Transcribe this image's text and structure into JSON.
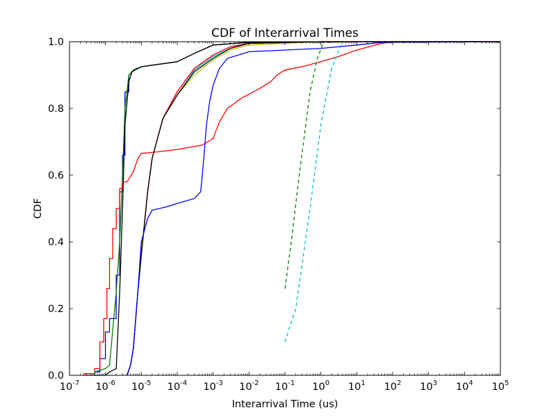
{
  "chart_data": {
    "type": "line",
    "title": "CDF of Interarrival Times",
    "xlabel": "Interarrival Time (us)",
    "ylabel": "CDF",
    "xscale": "log",
    "xlim": [
      1e-07,
      100000
    ],
    "ylim": [
      0,
      1
    ],
    "x_ticks": [
      {
        "base": "10",
        "exp": "-7"
      },
      {
        "base": "10",
        "exp": "-6"
      },
      {
        "base": "10",
        "exp": "-5"
      },
      {
        "base": "10",
        "exp": "-4"
      },
      {
        "base": "10",
        "exp": "-3"
      },
      {
        "base": "10",
        "exp": "-2"
      },
      {
        "base": "10",
        "exp": "-1"
      },
      {
        "base": "10",
        "exp": "0"
      },
      {
        "base": "10",
        "exp": "1"
      },
      {
        "base": "10",
        "exp": "2"
      },
      {
        "base": "10",
        "exp": "3"
      },
      {
        "base": "10",
        "exp": "4"
      },
      {
        "base": "10",
        "exp": "5"
      }
    ],
    "y_ticks": [
      "0.0",
      "0.2",
      "0.4",
      "0.6",
      "0.8",
      "1.0"
    ],
    "grid": false,
    "legend": "none",
    "series": [
      {
        "color": "#0000ff",
        "style": "solid",
        "points": [
          [
            2.5e-07,
            0
          ],
          [
            5e-07,
            0
          ],
          [
            5e-07,
            0.01
          ],
          [
            7e-07,
            0.01
          ],
          [
            7e-07,
            0.05
          ],
          [
            1e-06,
            0.05
          ],
          [
            1e-06,
            0.13
          ],
          [
            1.3e-06,
            0.13
          ],
          [
            1.3e-06,
            0.17
          ],
          [
            2e-06,
            0.17
          ],
          [
            2e-06,
            0.3
          ],
          [
            2.5e-06,
            0.3
          ],
          [
            2.5e-06,
            0.55
          ],
          [
            3e-06,
            0.55
          ],
          [
            3e-06,
            0.66
          ],
          [
            3.5e-06,
            0.66
          ],
          [
            3.5e-06,
            0.85
          ],
          [
            4.5e-06,
            0.85
          ],
          [
            4.5e-06,
            0.9
          ],
          [
            6e-06,
            0.915
          ],
          [
            1e-05,
            0.925
          ],
          [
            0.0001,
            0.94
          ],
          [
            0.0003,
            0.965
          ],
          [
            0.001,
            0.99
          ],
          [
            0.01,
            0.998
          ],
          [
            1,
            0.999
          ],
          [
            100,
            1
          ],
          [
            100000.0,
            1
          ]
        ]
      },
      {
        "color": "#007f00",
        "style": "solid",
        "points": [
          [
            5e-07,
            0
          ],
          [
            5e-07,
            0.01
          ],
          [
            1e-06,
            0.02
          ],
          [
            1.3e-06,
            0.03
          ],
          [
            2e-06,
            0.25
          ],
          [
            2.5e-06,
            0.4
          ],
          [
            3e-06,
            0.6
          ],
          [
            3.5e-06,
            0.8
          ],
          [
            4.5e-06,
            0.9
          ],
          [
            6e-06,
            0.915
          ],
          [
            1e-05,
            0.925
          ],
          [
            0.0001,
            0.94
          ],
          [
            0.0003,
            0.965
          ],
          [
            0.001,
            0.99
          ],
          [
            0.01,
            0.998
          ],
          [
            1,
            0.999
          ],
          [
            100,
            1
          ],
          [
            100000.0,
            1
          ]
        ]
      },
      {
        "color": "#000000",
        "style": "solid",
        "points": [
          [
            5e-07,
            0
          ],
          [
            1e-06,
            0
          ],
          [
            1.3e-06,
            0.01
          ],
          [
            2e-06,
            0.02
          ],
          [
            2.5e-06,
            0.25
          ],
          [
            3e-06,
            0.5
          ],
          [
            3.5e-06,
            0.75
          ],
          [
            4.5e-06,
            0.88
          ],
          [
            5.5e-06,
            0.91
          ],
          [
            1e-05,
            0.925
          ],
          [
            0.0001,
            0.94
          ],
          [
            0.0003,
            0.965
          ],
          [
            0.001,
            0.99
          ],
          [
            0.01,
            0.998
          ],
          [
            100,
            1
          ],
          [
            100000.0,
            1
          ]
        ]
      },
      {
        "color": "#ff0000",
        "style": "solid",
        "points": [
          [
            2.5e-07,
            0
          ],
          [
            2.5e-07,
            0.005
          ],
          [
            5e-07,
            0.005
          ],
          [
            5e-07,
            0.02
          ],
          [
            7e-07,
            0.02
          ],
          [
            7e-07,
            0.1
          ],
          [
            9e-07,
            0.1
          ],
          [
            9e-07,
            0.17
          ],
          [
            1.1e-06,
            0.17
          ],
          [
            1.1e-06,
            0.26
          ],
          [
            1.3e-06,
            0.26
          ],
          [
            1.3e-06,
            0.35
          ],
          [
            1.6e-06,
            0.35
          ],
          [
            1.6e-06,
            0.44
          ],
          [
            2e-06,
            0.44
          ],
          [
            2e-06,
            0.5
          ],
          [
            2.5e-06,
            0.5
          ],
          [
            2.5e-06,
            0.56
          ],
          [
            3e-06,
            0.56
          ],
          [
            3e-06,
            0.58
          ],
          [
            4e-06,
            0.58
          ],
          [
            6e-06,
            0.61
          ],
          [
            8e-06,
            0.65
          ],
          [
            1e-05,
            0.665
          ],
          [
            3e-05,
            0.67
          ],
          [
            0.0001,
            0.677
          ],
          [
            0.0005,
            0.69
          ],
          [
            0.001,
            0.71
          ],
          [
            0.0015,
            0.76
          ],
          [
            0.0025,
            0.8
          ],
          [
            0.006,
            0.83
          ],
          [
            0.02,
            0.86
          ],
          [
            0.04,
            0.88
          ],
          [
            0.06,
            0.9
          ],
          [
            0.1,
            0.915
          ],
          [
            0.3,
            0.925
          ],
          [
            1,
            0.94
          ],
          [
            3,
            0.955
          ],
          [
            10,
            0.975
          ],
          [
            50,
            0.995
          ],
          [
            100,
            1
          ],
          [
            100000.0,
            1
          ]
        ]
      },
      {
        "color": "#ff00ff",
        "style": "solid",
        "points": [
          [
            4e-06,
            0
          ],
          [
            5e-06,
            0.03
          ],
          [
            6e-06,
            0.08
          ],
          [
            8e-06,
            0.25
          ],
          [
            1e-05,
            0.36
          ],
          [
            1.5e-05,
            0.55
          ],
          [
            2e-05,
            0.65
          ],
          [
            4e-05,
            0.77
          ],
          [
            0.0001,
            0.85
          ],
          [
            0.0003,
            0.92
          ],
          [
            0.001,
            0.96
          ],
          [
            0.003,
            0.985
          ],
          [
            0.01,
            0.995
          ],
          [
            1,
            1
          ],
          [
            100000.0,
            1
          ]
        ]
      },
      {
        "color": "#00bfbf",
        "style": "solid",
        "points": [
          [
            4e-06,
            0
          ],
          [
            5e-06,
            0.03
          ],
          [
            6e-06,
            0.08
          ],
          [
            8e-06,
            0.25
          ],
          [
            1e-05,
            0.36
          ],
          [
            1.5e-05,
            0.55
          ],
          [
            2e-05,
            0.65
          ],
          [
            4e-05,
            0.77
          ],
          [
            0.0001,
            0.84
          ],
          [
            0.0003,
            0.915
          ],
          [
            0.001,
            0.955
          ],
          [
            0.003,
            0.98
          ],
          [
            0.01,
            0.995
          ],
          [
            1,
            1
          ],
          [
            100000.0,
            1
          ]
        ]
      },
      {
        "color": "#bfbf00",
        "style": "solid",
        "points": [
          [
            4e-06,
            0
          ],
          [
            5e-06,
            0.03
          ],
          [
            6e-06,
            0.08
          ],
          [
            8e-06,
            0.25
          ],
          [
            1e-05,
            0.36
          ],
          [
            1.5e-05,
            0.55
          ],
          [
            2e-05,
            0.65
          ],
          [
            4e-05,
            0.77
          ],
          [
            0.0001,
            0.84
          ],
          [
            0.0003,
            0.9
          ],
          [
            0.001,
            0.945
          ],
          [
            0.003,
            0.975
          ],
          [
            0.01,
            0.99
          ],
          [
            1,
            1
          ],
          [
            100000.0,
            1
          ]
        ]
      },
      {
        "color": "#ff0000",
        "style": "solid",
        "points": [
          [
            4e-06,
            0
          ],
          [
            5e-06,
            0.03
          ],
          [
            6e-06,
            0.08
          ],
          [
            8e-06,
            0.25
          ],
          [
            1e-05,
            0.36
          ],
          [
            1.5e-05,
            0.55
          ],
          [
            2e-05,
            0.65
          ],
          [
            4e-05,
            0.77
          ],
          [
            0.0001,
            0.85
          ],
          [
            0.0003,
            0.92
          ],
          [
            0.001,
            0.96
          ],
          [
            0.003,
            0.985
          ],
          [
            0.01,
            0.995
          ],
          [
            1,
            1
          ],
          [
            100000.0,
            1
          ]
        ]
      },
      {
        "color": "#000000",
        "style": "solid",
        "points": [
          [
            4e-06,
            0
          ],
          [
            5e-06,
            0.03
          ],
          [
            6e-06,
            0.08
          ],
          [
            8e-06,
            0.25
          ],
          [
            1e-05,
            0.36
          ],
          [
            1.5e-05,
            0.55
          ],
          [
            2e-05,
            0.65
          ],
          [
            4e-05,
            0.77
          ],
          [
            0.0001,
            0.84
          ],
          [
            0.0003,
            0.91
          ],
          [
            0.001,
            0.95
          ],
          [
            0.003,
            0.98
          ],
          [
            0.01,
            0.995
          ],
          [
            1,
            1
          ],
          [
            100000.0,
            1
          ]
        ]
      },
      {
        "color": "#0000ff",
        "style": "solid",
        "points": [
          [
            4e-06,
            0
          ],
          [
            5e-06,
            0.03
          ],
          [
            6e-06,
            0.08
          ],
          [
            8e-06,
            0.25
          ],
          [
            1e-05,
            0.4
          ],
          [
            1.5e-05,
            0.47
          ],
          [
            2e-05,
            0.495
          ],
          [
            5e-05,
            0.505
          ],
          [
            0.0001,
            0.515
          ],
          [
            0.0003,
            0.53
          ],
          [
            0.00045,
            0.55
          ],
          [
            0.00055,
            0.65
          ],
          [
            0.00065,
            0.75
          ],
          [
            0.0008,
            0.82
          ],
          [
            0.001,
            0.87
          ],
          [
            0.0015,
            0.92
          ],
          [
            0.0025,
            0.95
          ],
          [
            0.01,
            0.97
          ],
          [
            0.1,
            0.975
          ],
          [
            1,
            0.98
          ],
          [
            10,
            0.99
          ],
          [
            50,
            0.998
          ],
          [
            100000.0,
            1
          ]
        ]
      },
      {
        "color": "#007f00",
        "style": "dashed",
        "points": [
          [
            0.1,
            0.26
          ],
          [
            0.15,
            0.4
          ],
          [
            0.25,
            0.6
          ],
          [
            0.5,
            0.85
          ],
          [
            0.8,
            0.95
          ],
          [
            1.2,
            1
          ]
        ]
      },
      {
        "color": "#00bfbf",
        "style": "dashed",
        "points": [
          [
            0.1,
            0.1
          ],
          [
            0.2,
            0.2
          ],
          [
            0.5,
            0.5
          ],
          [
            1,
            0.75
          ],
          [
            2,
            0.92
          ],
          [
            4,
            1
          ]
        ]
      },
      {
        "color": "#000000",
        "style": "dashed",
        "points": [
          [
            1,
            0.998
          ],
          [
            10,
            1
          ],
          [
            100000.0,
            1
          ]
        ]
      }
    ]
  }
}
